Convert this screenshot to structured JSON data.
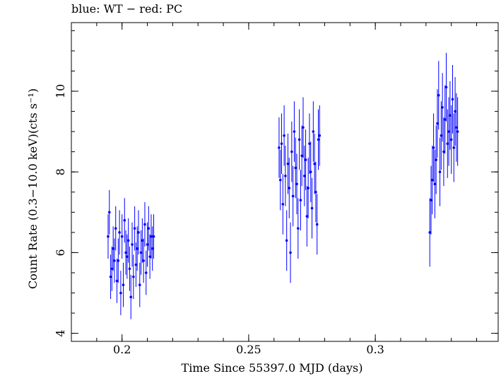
{
  "title": "blue: WT − red: PC",
  "chart_data": {
    "type": "scatter",
    "title": "blue: WT − red: PC",
    "xlabel": "Time Since 55397.0 MJD (days)",
    "ylabel": "Count Rate (0.3−10.0 keV)(cts s⁻¹)",
    "xlim": [
      0.18,
      0.3485
    ],
    "ylim": [
      3.8,
      11.7
    ],
    "x_ticks": [
      0.2,
      0.25,
      0.3
    ],
    "x_tick_labels": [
      "0.2",
      "0.25",
      "0.3"
    ],
    "y_ticks": [
      4,
      6,
      8,
      10
    ],
    "y_tick_labels": [
      "4",
      "6",
      "8",
      "10"
    ],
    "grid": false,
    "series": [
      {
        "color": "#0000ff",
        "errorbars": true,
        "x": [
          0.1945,
          0.195,
          0.1955,
          0.196,
          0.1965,
          0.197,
          0.1975,
          0.198,
          0.1985,
          0.199,
          0.1995,
          0.2,
          0.2005,
          0.201,
          0.2015,
          0.202,
          0.2025,
          0.203,
          0.2035,
          0.204,
          0.2045,
          0.205,
          0.2055,
          0.206,
          0.2065,
          0.207,
          0.2075,
          0.208,
          0.2085,
          0.209,
          0.2095,
          0.21,
          0.2105,
          0.211,
          0.2115,
          0.212,
          0.2125,
          0.262,
          0.2625,
          0.263,
          0.2635,
          0.264,
          0.2645,
          0.265,
          0.2655,
          0.266,
          0.2665,
          0.267,
          0.2675,
          0.268,
          0.2685,
          0.269,
          0.2695,
          0.27,
          0.2705,
          0.271,
          0.2715,
          0.272,
          0.2725,
          0.273,
          0.2735,
          0.274,
          0.2745,
          0.275,
          0.2755,
          0.276,
          0.2765,
          0.277,
          0.2775,
          0.278,
          0.3215,
          0.322,
          0.3225,
          0.323,
          0.3235,
          0.324,
          0.3245,
          0.325,
          0.3255,
          0.326,
          0.3265,
          0.327,
          0.3275,
          0.328,
          0.3285,
          0.329,
          0.3295,
          0.33,
          0.3305,
          0.331,
          0.3315,
          0.332,
          0.3325
        ],
        "y": [
          6.4,
          7.0,
          5.4,
          5.6,
          6.1,
          5.8,
          6.6,
          5.3,
          5.8,
          6.5,
          5.0,
          6.4,
          5.2,
          6.8,
          6.0,
          5.9,
          6.3,
          5.6,
          4.9,
          6.2,
          5.4,
          6.6,
          5.7,
          6.1,
          6.5,
          5.2,
          6.0,
          6.3,
          5.8,
          6.7,
          5.5,
          6.2,
          6.6,
          5.9,
          6.4,
          6.1,
          6.4,
          8.6,
          7.8,
          8.7,
          7.2,
          8.9,
          7.9,
          6.3,
          8.2,
          7.6,
          6.0,
          8.5,
          7.4,
          9.0,
          8.1,
          7.7,
          6.6,
          8.8,
          7.3,
          8.4,
          9.1,
          7.9,
          8.3,
          6.9,
          7.6,
          8.7,
          8.0,
          7.1,
          9.0,
          8.2,
          7.5,
          6.7,
          8.8,
          8.9,
          6.5,
          7.3,
          7.8,
          8.6,
          7.7,
          8.3,
          9.2,
          9.9,
          8.0,
          8.9,
          9.6,
          8.5,
          9.3,
          10.1,
          8.7,
          9.0,
          9.4,
          8.8,
          9.8,
          8.6,
          9.5,
          9.1,
          9.0
        ],
        "yerr": [
          0.55,
          0.55,
          0.55,
          0.55,
          0.55,
          0.55,
          0.55,
          0.55,
          0.55,
          0.55,
          0.55,
          0.55,
          0.55,
          0.55,
          0.55,
          0.55,
          0.55,
          0.55,
          0.55,
          0.55,
          0.55,
          0.55,
          0.55,
          0.55,
          0.55,
          0.55,
          0.55,
          0.55,
          0.55,
          0.55,
          0.55,
          0.55,
          0.55,
          0.55,
          0.55,
          0.55,
          0.55,
          0.75,
          0.75,
          0.75,
          0.75,
          0.75,
          0.75,
          0.75,
          0.75,
          0.75,
          0.75,
          0.75,
          0.75,
          0.75,
          0.75,
          0.75,
          0.75,
          0.75,
          0.75,
          0.75,
          0.75,
          0.75,
          0.75,
          0.75,
          0.75,
          0.75,
          0.75,
          0.75,
          0.75,
          0.75,
          0.75,
          0.75,
          0.75,
          0.75,
          0.85,
          0.85,
          0.85,
          0.85,
          0.85,
          0.85,
          0.85,
          0.85,
          0.85,
          0.85,
          0.85,
          0.85,
          0.85,
          0.85,
          0.85,
          0.85,
          0.85,
          0.85,
          0.85,
          0.85,
          0.85,
          0.85,
          0.85
        ]
      }
    ]
  }
}
